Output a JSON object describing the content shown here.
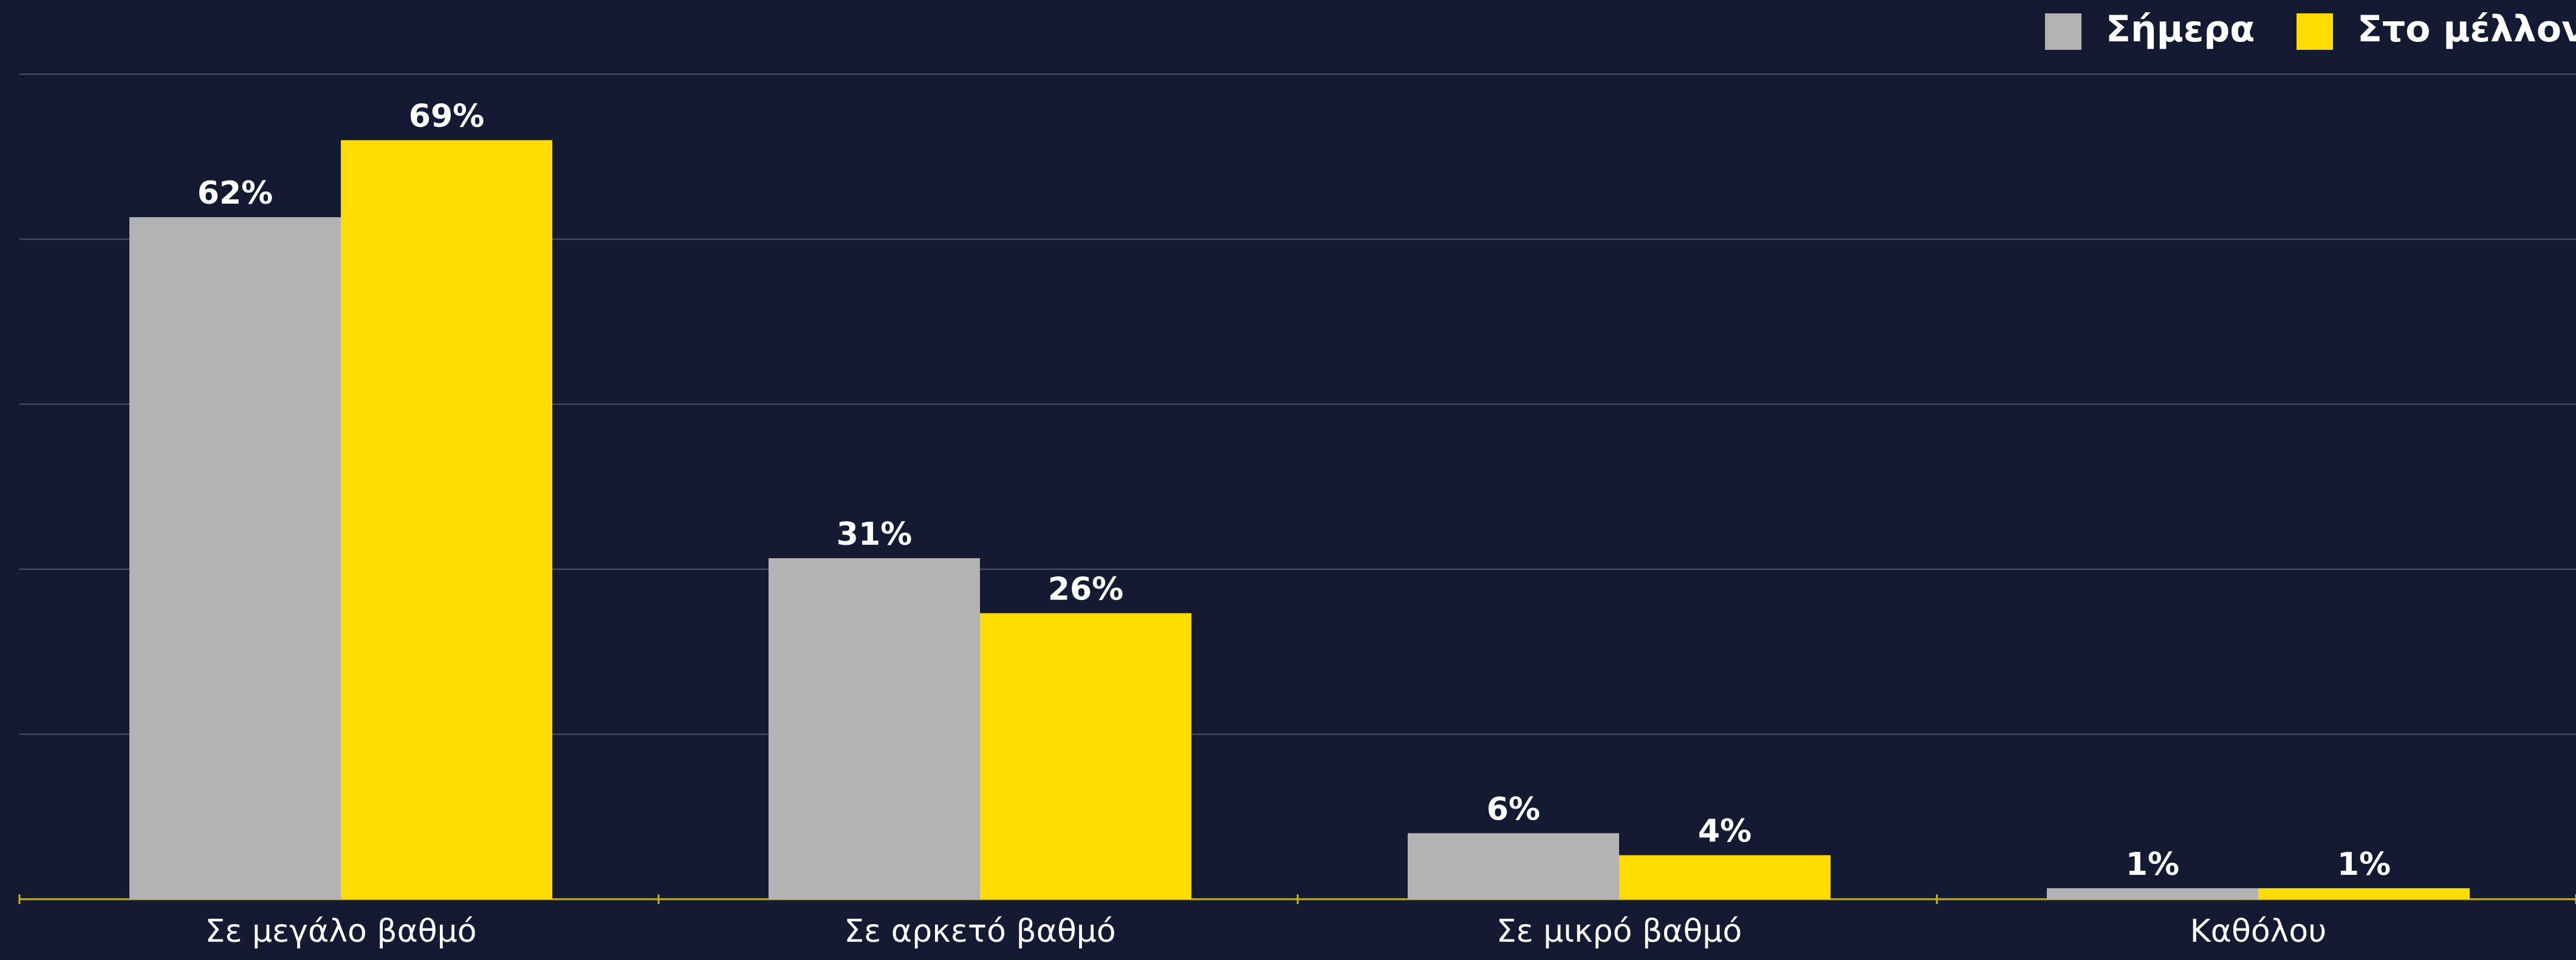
{
  "chart_data": {
    "type": "bar",
    "categories": [
      "Σε μεγάλο βαθμό",
      "Σε αρκετό βαθμό",
      "Σε μικρό βαθμό",
      "Καθόλου"
    ],
    "series": [
      {
        "name": "Σήμερα",
        "color": "#b3b3b3",
        "values": [
          62,
          31,
          6,
          1
        ],
        "value_labels": [
          "62%",
          "31%",
          "6%",
          "1%"
        ]
      },
      {
        "name": "Στο μέλλον",
        "color": "#ffdd00",
        "values": [
          69,
          26,
          4,
          1
        ],
        "value_labels": [
          "69%",
          "26%",
          "4%",
          "1%"
        ]
      }
    ],
    "ylim": [
      0,
      75
    ],
    "yticks": [
      0,
      15,
      30,
      45,
      60,
      75
    ],
    "grid": true,
    "legend": "top-right"
  }
}
